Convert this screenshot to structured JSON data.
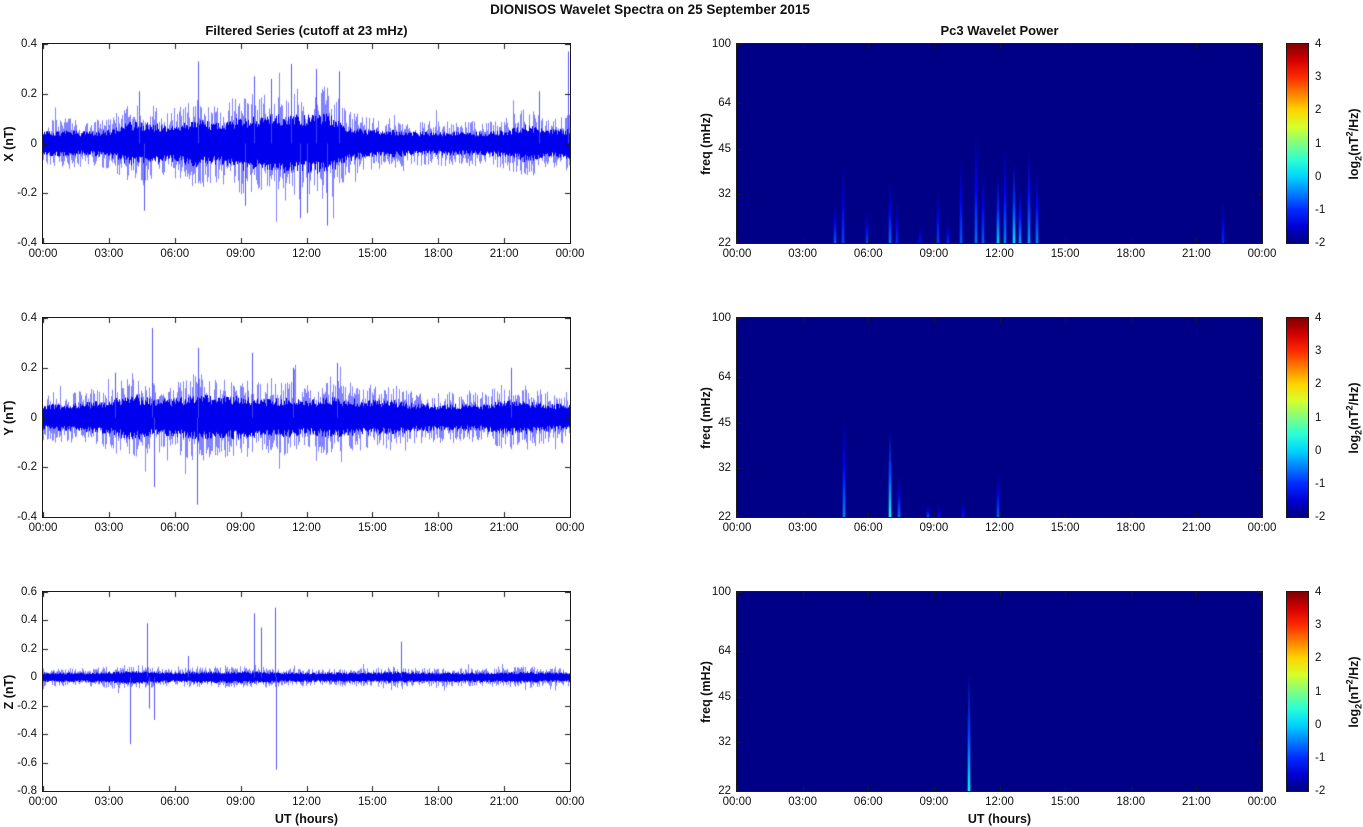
{
  "figure": {
    "title": "DIONISOS Wavelet Spectra on 25 September 2015"
  },
  "shared": {
    "xlabel": "UT (hours)",
    "xtick_labels": [
      "00:00",
      "03:00",
      "06:00",
      "09:00",
      "12:00",
      "15:00",
      "18:00",
      "21:00",
      "00:00"
    ],
    "xtick_hours": [
      0,
      3,
      6,
      9,
      12,
      15,
      18,
      21,
      24
    ],
    "line_color": "#0000ee",
    "heatmap_bg": "#000087",
    "colorbar": {
      "colormap": "jet",
      "clim": [
        -2,
        4
      ],
      "ticks": [
        4,
        3,
        2,
        1,
        0,
        -1,
        -2
      ],
      "label_parts": {
        "pre": "log",
        "sub": "2",
        "mid": "(nT",
        "sup": "2",
        "post": "/Hz)"
      }
    }
  },
  "chart_data": [
    {
      "type": "line",
      "id": "x-filtered",
      "title": "Filtered Series (cutoff at 23 mHz)",
      "ylabel": "X (nT)",
      "ylim": [
        -0.4,
        0.4
      ],
      "yticks": [
        0.4,
        0.2,
        0,
        -0.2,
        -0.4
      ],
      "x_range_hours": [
        0,
        24
      ],
      "envelope_hourly": [
        0.07,
        0.08,
        0.07,
        0.08,
        0.13,
        0.12,
        0.11,
        0.14,
        0.12,
        0.16,
        0.15,
        0.18,
        0.17,
        0.18,
        0.1,
        0.08,
        0.08,
        0.07,
        0.07,
        0.07,
        0.07,
        0.08,
        0.11,
        0.08,
        0.09
      ],
      "spikes": [
        {
          "t": 4.35,
          "v": 0.21
        },
        {
          "t": 4.6,
          "v": -0.27
        },
        {
          "t": 7.05,
          "v": 0.33
        },
        {
          "t": 9.2,
          "v": -0.25
        },
        {
          "t": 9.6,
          "v": 0.27
        },
        {
          "t": 10.4,
          "v": 0.26
        },
        {
          "t": 11.3,
          "v": 0.32
        },
        {
          "t": 11.7,
          "v": -0.3
        },
        {
          "t": 12.0,
          "v": -0.28
        },
        {
          "t": 12.45,
          "v": 0.3
        },
        {
          "t": 12.95,
          "v": -0.33
        },
        {
          "t": 13.5,
          "v": 0.29
        },
        {
          "t": 22.6,
          "v": 0.21
        },
        {
          "t": 23.9,
          "v": 0.37
        }
      ]
    },
    {
      "type": "heatmap",
      "id": "x-wavelet",
      "title": "Pc3 Wavelet Power",
      "ylabel": "freq (mHz)",
      "ylim": [
        22,
        100
      ],
      "yscale": "log",
      "yticks": [
        100,
        64,
        45,
        32,
        22
      ],
      "x_range_hours": [
        0,
        24
      ],
      "background_value": -2,
      "streaks": [
        {
          "t": 4.45,
          "f_top": 30,
          "intensity": 0.45
        },
        {
          "t": 4.8,
          "f_top": 40,
          "intensity": 0.4
        },
        {
          "t": 5.9,
          "f_top": 28,
          "intensity": 0.4
        },
        {
          "t": 6.95,
          "f_top": 35,
          "intensity": 0.5
        },
        {
          "t": 7.25,
          "f_top": 30,
          "intensity": 0.35
        },
        {
          "t": 8.3,
          "f_top": 25,
          "intensity": 0.3
        },
        {
          "t": 9.15,
          "f_top": 33,
          "intensity": 0.4
        },
        {
          "t": 9.6,
          "f_top": 26,
          "intensity": 0.35
        },
        {
          "t": 10.2,
          "f_top": 42,
          "intensity": 0.45
        },
        {
          "t": 10.9,
          "f_top": 50,
          "intensity": 0.5
        },
        {
          "t": 11.2,
          "f_top": 38,
          "intensity": 0.45
        },
        {
          "t": 11.9,
          "f_top": 36,
          "intensity": 0.7
        },
        {
          "t": 12.2,
          "f_top": 45,
          "intensity": 0.55
        },
        {
          "t": 12.6,
          "f_top": 40,
          "intensity": 0.75
        },
        {
          "t": 12.9,
          "f_top": 33,
          "intensity": 0.6
        },
        {
          "t": 13.3,
          "f_top": 45,
          "intensity": 0.6
        },
        {
          "t": 13.65,
          "f_top": 38,
          "intensity": 0.55
        },
        {
          "t": 22.15,
          "f_top": 30,
          "intensity": 0.35
        }
      ]
    },
    {
      "type": "line",
      "id": "y-filtered",
      "title": "",
      "ylabel": "Y (nT)",
      "ylim": [
        -0.4,
        0.4
      ],
      "yticks": [
        0.4,
        0.2,
        0,
        -0.2,
        -0.4
      ],
      "x_range_hours": [
        0,
        24
      ],
      "envelope_hourly": [
        0.08,
        0.08,
        0.09,
        0.1,
        0.14,
        0.11,
        0.11,
        0.14,
        0.12,
        0.13,
        0.11,
        0.12,
        0.1,
        0.12,
        0.11,
        0.1,
        0.1,
        0.08,
        0.08,
        0.08,
        0.08,
        0.1,
        0.1,
        0.08,
        0.08
      ],
      "spikes": [
        {
          "t": 3.3,
          "v": 0.18
        },
        {
          "t": 4.95,
          "v": 0.36
        },
        {
          "t": 5.05,
          "v": -0.28
        },
        {
          "t": 7.0,
          "v": -0.35
        },
        {
          "t": 7.07,
          "v": 0.28
        },
        {
          "t": 9.5,
          "v": 0.26
        },
        {
          "t": 11.4,
          "v": 0.2
        },
        {
          "t": 13.4,
          "v": 0.22
        },
        {
          "t": 21.3,
          "v": 0.2
        }
      ]
    },
    {
      "type": "heatmap",
      "id": "y-wavelet",
      "title": "",
      "ylabel": "freq (mHz)",
      "ylim": [
        22,
        100
      ],
      "yscale": "log",
      "yticks": [
        100,
        64,
        45,
        32,
        22
      ],
      "x_range_hours": [
        0,
        24
      ],
      "background_value": -2,
      "streaks": [
        {
          "t": 4.85,
          "f_top": 46,
          "intensity": 0.55
        },
        {
          "t": 6.95,
          "f_top": 42,
          "intensity": 0.85
        },
        {
          "t": 7.35,
          "f_top": 30,
          "intensity": 0.5
        },
        {
          "t": 8.7,
          "f_top": 24,
          "intensity": 0.45
        },
        {
          "t": 9.2,
          "f_top": 24,
          "intensity": 0.3
        },
        {
          "t": 10.3,
          "f_top": 25,
          "intensity": 0.3
        },
        {
          "t": 11.9,
          "f_top": 31,
          "intensity": 0.45
        }
      ]
    },
    {
      "type": "line",
      "id": "z-filtered",
      "title": "",
      "ylabel": "Z (nT)",
      "xlabel": "UT (hours)",
      "ylim": [
        -0.8,
        0.6
      ],
      "yticks": [
        0.6,
        0.4,
        0.2,
        0,
        -0.2,
        -0.4,
        -0.6,
        -0.8
      ],
      "x_range_hours": [
        0,
        24
      ],
      "envelope_hourly": [
        0.05,
        0.05,
        0.05,
        0.06,
        0.07,
        0.06,
        0.05,
        0.06,
        0.06,
        0.06,
        0.06,
        0.05,
        0.05,
        0.05,
        0.05,
        0.05,
        0.06,
        0.05,
        0.05,
        0.05,
        0.05,
        0.05,
        0.06,
        0.05,
        0.05
      ],
      "spikes": [
        {
          "t": 3.95,
          "v": -0.47
        },
        {
          "t": 4.75,
          "v": 0.38
        },
        {
          "t": 4.85,
          "v": -0.22
        },
        {
          "t": 5.05,
          "v": -0.3
        },
        {
          "t": 6.6,
          "v": 0.15
        },
        {
          "t": 9.6,
          "v": 0.45
        },
        {
          "t": 9.95,
          "v": 0.35
        },
        {
          "t": 10.55,
          "v": 0.49
        },
        {
          "t": 10.62,
          "v": -0.65
        },
        {
          "t": 16.3,
          "v": 0.25
        }
      ]
    },
    {
      "type": "heatmap",
      "id": "z-wavelet",
      "title": "",
      "ylabel": "freq (mHz)",
      "xlabel": "UT (hours)",
      "ylim": [
        22,
        100
      ],
      "yscale": "log",
      "yticks": [
        100,
        64,
        45,
        32,
        22
      ],
      "x_range_hours": [
        0,
        24
      ],
      "background_value": -2,
      "streaks": [
        {
          "t": 10.55,
          "f_top": 53,
          "intensity": 0.8
        }
      ]
    }
  ]
}
